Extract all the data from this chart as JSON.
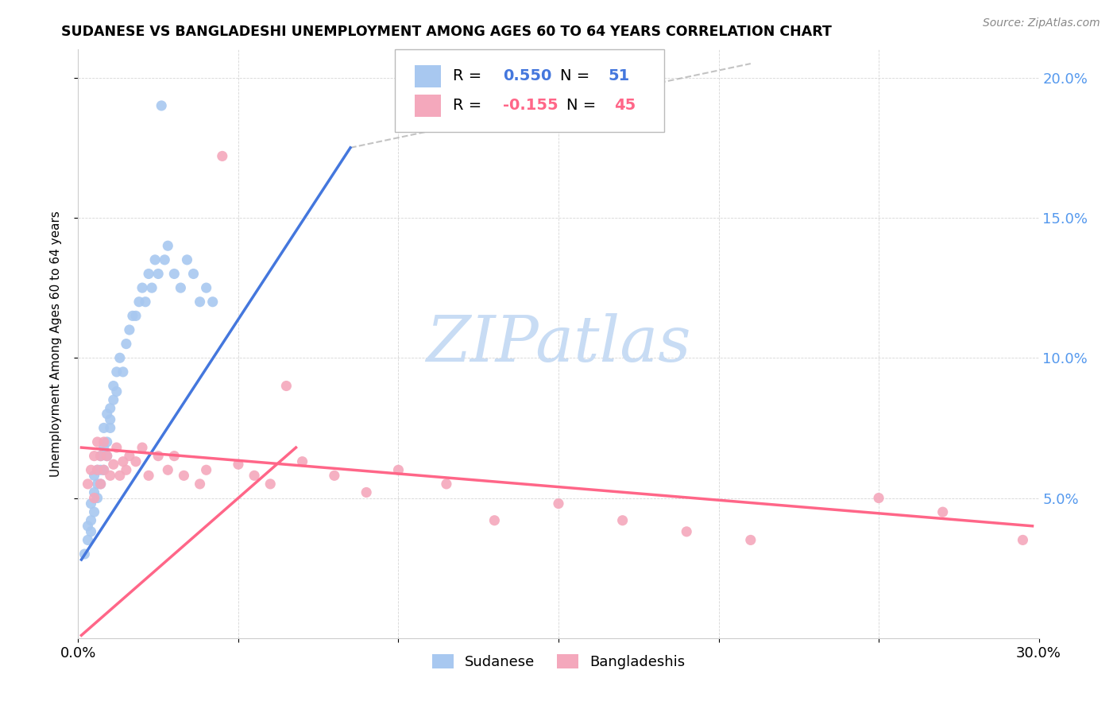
{
  "title": "SUDANESE VS BANGLADESHI UNEMPLOYMENT AMONG AGES 60 TO 64 YEARS CORRELATION CHART",
  "source": "Source: ZipAtlas.com",
  "ylabel": "Unemployment Among Ages 60 to 64 years",
  "xlim": [
    0.0,
    0.3
  ],
  "ylim": [
    0.0,
    0.21
  ],
  "yticks": [
    0.05,
    0.1,
    0.15,
    0.2
  ],
  "xticks": [
    0.0,
    0.05,
    0.1,
    0.15,
    0.2,
    0.25,
    0.3
  ],
  "blue_r": 0.55,
  "blue_n": 51,
  "pink_r": -0.155,
  "pink_n": 45,
  "blue_color": "#A8C8F0",
  "pink_color": "#F4A8BC",
  "blue_line_color": "#4477DD",
  "pink_line_color": "#FF6688",
  "right_tick_color": "#5599EE",
  "watermark_color": "#C8DCF4",
  "sudanese_x": [
    0.002,
    0.003,
    0.003,
    0.004,
    0.004,
    0.004,
    0.005,
    0.005,
    0.005,
    0.006,
    0.006,
    0.006,
    0.007,
    0.007,
    0.007,
    0.008,
    0.008,
    0.008,
    0.009,
    0.009,
    0.009,
    0.01,
    0.01,
    0.01,
    0.011,
    0.011,
    0.012,
    0.012,
    0.013,
    0.014,
    0.015,
    0.016,
    0.017,
    0.018,
    0.019,
    0.02,
    0.021,
    0.022,
    0.023,
    0.024,
    0.025,
    0.026,
    0.027,
    0.028,
    0.03,
    0.032,
    0.034,
    0.036,
    0.038,
    0.04,
    0.042
  ],
  "sudanese_y": [
    0.03,
    0.035,
    0.04,
    0.038,
    0.042,
    0.048,
    0.045,
    0.052,
    0.058,
    0.05,
    0.055,
    0.06,
    0.055,
    0.065,
    0.06,
    0.06,
    0.068,
    0.075,
    0.065,
    0.07,
    0.08,
    0.075,
    0.082,
    0.078,
    0.085,
    0.09,
    0.088,
    0.095,
    0.1,
    0.095,
    0.105,
    0.11,
    0.115,
    0.115,
    0.12,
    0.125,
    0.12,
    0.13,
    0.125,
    0.135,
    0.13,
    0.19,
    0.135,
    0.14,
    0.13,
    0.125,
    0.135,
    0.13,
    0.12,
    0.125,
    0.12
  ],
  "bangladeshi_x": [
    0.003,
    0.004,
    0.005,
    0.005,
    0.006,
    0.006,
    0.007,
    0.007,
    0.008,
    0.008,
    0.009,
    0.01,
    0.011,
    0.012,
    0.013,
    0.014,
    0.015,
    0.016,
    0.018,
    0.02,
    0.022,
    0.025,
    0.028,
    0.03,
    0.033,
    0.038,
    0.04,
    0.045,
    0.05,
    0.055,
    0.06,
    0.065,
    0.07,
    0.08,
    0.09,
    0.1,
    0.115,
    0.13,
    0.15,
    0.17,
    0.19,
    0.21,
    0.25,
    0.27,
    0.295
  ],
  "bangladeshi_y": [
    0.055,
    0.06,
    0.05,
    0.065,
    0.06,
    0.07,
    0.055,
    0.065,
    0.06,
    0.07,
    0.065,
    0.058,
    0.062,
    0.068,
    0.058,
    0.063,
    0.06,
    0.065,
    0.063,
    0.068,
    0.058,
    0.065,
    0.06,
    0.065,
    0.058,
    0.055,
    0.06,
    0.172,
    0.062,
    0.058,
    0.055,
    0.09,
    0.063,
    0.058,
    0.052,
    0.06,
    0.055,
    0.042,
    0.048,
    0.042,
    0.038,
    0.035,
    0.05,
    0.045,
    0.035
  ]
}
